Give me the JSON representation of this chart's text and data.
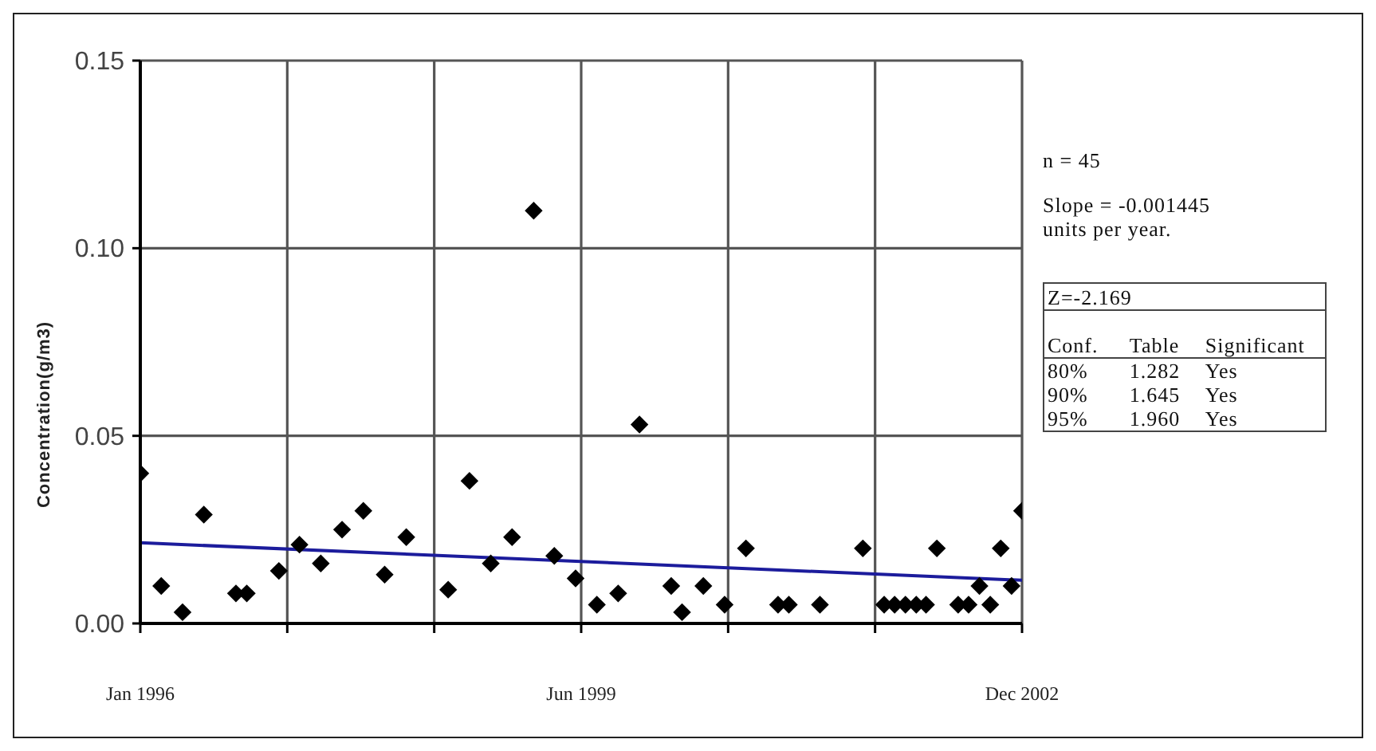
{
  "chart_data": {
    "type": "scatter",
    "ylabel": "Concentration(g/m3)",
    "series": [
      {
        "color": "#000000",
        "marker": "diamond",
        "x": [
          "1996-01",
          "1996-03",
          "1996-05",
          "1996-07",
          "1996-10",
          "1996-11",
          "1997-02",
          "1997-04",
          "1997-06",
          "1997-08",
          "1997-10",
          "1997-12",
          "1998-02",
          "1998-06",
          "1998-08",
          "1998-10",
          "1998-12",
          "1999-02",
          "1999-04",
          "1999-06",
          "1999-08",
          "1999-10",
          "1999-12",
          "2000-03",
          "2000-04",
          "2000-06",
          "2000-08",
          "2000-10",
          "2001-01",
          "2001-02",
          "2001-05",
          "2001-09",
          "2001-11",
          "2001-12",
          "2002-01",
          "2002-02",
          "2002-03",
          "2002-04",
          "2002-06",
          "2002-07",
          "2002-08",
          "2002-09",
          "2002-10",
          "2002-11",
          "2002-12"
        ],
        "values": [
          0.04,
          0.01,
          0.003,
          0.029,
          0.008,
          0.008,
          0.014,
          0.021,
          0.016,
          0.025,
          0.03,
          0.013,
          0.023,
          0.009,
          0.038,
          0.016,
          0.023,
          0.11,
          0.018,
          0.012,
          0.005,
          0.008,
          0.053,
          0.01,
          0.003,
          0.01,
          0.005,
          0.02,
          0.005,
          0.005,
          0.005,
          0.02,
          0.005,
          0.005,
          0.005,
          0.005,
          0.005,
          0.02,
          0.005,
          0.005,
          0.01,
          0.005,
          0.02,
          0.01,
          0.03
        ]
      },
      {
        "type": "line",
        "color": "#1c1c9c",
        "marker": "none",
        "x": [
          "1996-01",
          "2002-12"
        ],
        "values": [
          0.0215,
          0.0115
        ]
      }
    ],
    "xlim": [
      "1996-01",
      "2002-12"
    ],
    "xticks": [
      {
        "value": "1996-01",
        "label": "Jan 1996"
      },
      {
        "value": "1997-02-25",
        "label": null
      },
      {
        "value": "1998-04-22",
        "label": null
      },
      {
        "value": "1999-06-17",
        "label": "Jun 1999"
      },
      {
        "value": "2000-08-11",
        "label": null
      },
      {
        "value": "2001-10-06",
        "label": null
      },
      {
        "value": "2002-12",
        "label": "Dec 2002"
      }
    ],
    "ylim": [
      0,
      0.15
    ],
    "yticks": [
      {
        "value": 0,
        "label": "0.00"
      },
      {
        "value": 0.05,
        "label": "0.05"
      },
      {
        "value": 0.1,
        "label": "0.10"
      },
      {
        "value": 0.15,
        "label": "0.15"
      }
    ],
    "grid": true,
    "annotations": [
      "n = 45",
      "Slope = -0.001445 units per year.",
      "Z=-2.169",
      "Conf.",
      "Table",
      "Significant",
      "80%",
      "1.282",
      "Yes",
      "90%",
      "1.645",
      "Yes",
      "95%",
      "1.960",
      "Yes"
    ]
  }
}
